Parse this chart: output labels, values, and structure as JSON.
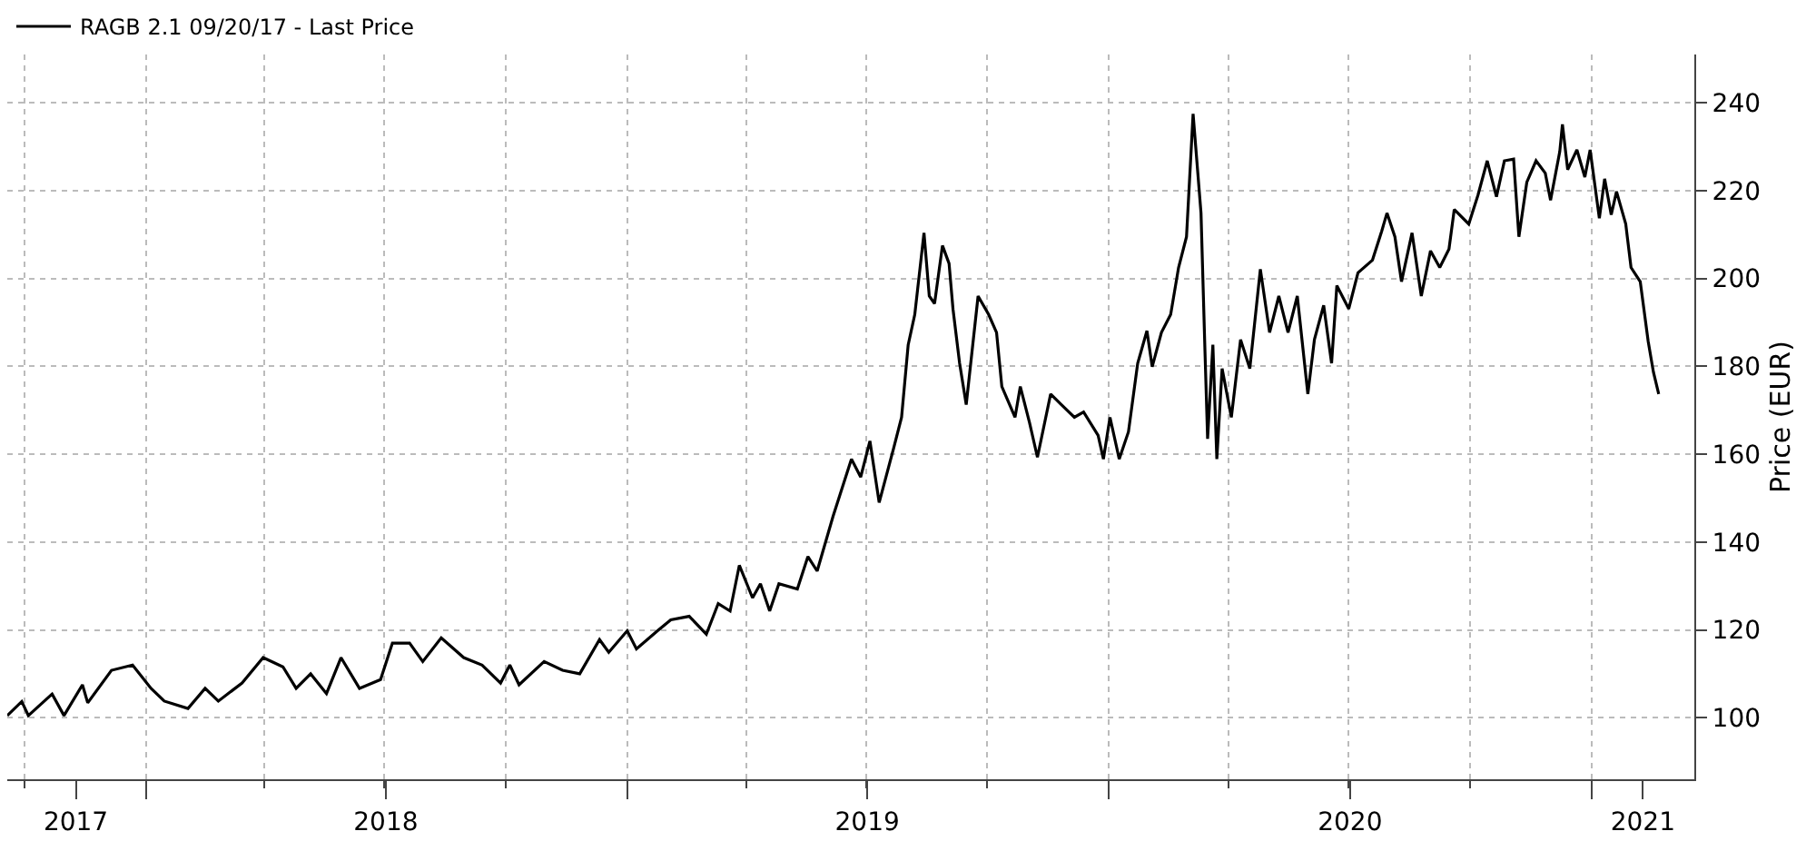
{
  "chart_data": {
    "type": "line",
    "ylabel": "Price (EUR)",
    "legend": "top left",
    "grid": true,
    "line_style": "solid",
    "xlim": [
      "2017-09-18",
      "2021-03-20"
    ],
    "xticks": [
      {
        "value": "2017-11-09",
        "label": "2017"
      },
      {
        "value": "2018-01-01",
        "label": null
      },
      {
        "value": "2018-07-02",
        "label": "2018"
      },
      {
        "value": "2019-01-01",
        "label": null
      },
      {
        "value": "2019-07-02",
        "label": "2019"
      },
      {
        "value": "2020-01-01",
        "label": null
      },
      {
        "value": "2020-07-02",
        "label": "2020"
      },
      {
        "value": "2021-01-01",
        "label": null
      },
      {
        "value": "2021-02-09",
        "label": "2021"
      }
    ],
    "ylim": [
      86,
      251
    ],
    "yticks": [
      100,
      120,
      140,
      160,
      180,
      200,
      220,
      240
    ],
    "series": [
      {
        "name": "RAGB 2.1 09/20/17 - Last Price",
        "color": "#000000",
        "x": [
          "2017-09-18",
          "2017-09-29",
          "2017-10-04",
          "2017-10-22",
          "2017-10-31",
          "2017-11-14",
          "2017-11-18",
          "2017-12-06",
          "2017-12-22",
          "2018-01-05",
          "2018-01-15",
          "2018-02-02",
          "2018-02-15",
          "2018-02-25",
          "2018-03-15",
          "2018-03-31",
          "2018-04-15",
          "2018-04-25",
          "2018-05-06",
          "2018-05-18",
          "2018-05-29",
          "2018-06-12",
          "2018-06-28",
          "2018-07-07",
          "2018-07-20",
          "2018-07-30",
          "2018-08-13",
          "2018-08-30",
          "2018-09-13",
          "2018-09-27",
          "2018-10-04",
          "2018-10-11",
          "2018-10-30",
          "2018-11-13",
          "2018-11-26",
          "2018-12-11",
          "2018-12-18",
          "2019-01-01",
          "2019-01-08",
          "2019-01-24",
          "2019-02-03",
          "2019-02-17",
          "2019-03-02",
          "2019-03-11",
          "2019-03-20",
          "2019-03-27",
          "2019-04-06",
          "2019-04-12",
          "2019-04-19",
          "2019-04-26",
          "2019-05-10",
          "2019-05-18",
          "2019-05-25",
          "2019-06-06",
          "2019-06-20",
          "2019-06-27",
          "2019-07-04",
          "2019-07-11",
          "2019-07-22",
          "2019-07-28",
          "2019-08-02",
          "2019-08-07",
          "2019-08-14",
          "2019-08-18",
          "2019-08-22",
          "2019-08-28",
          "2019-09-02",
          "2019-09-05",
          "2019-09-10",
          "2019-09-15",
          "2019-09-24",
          "2019-10-02",
          "2019-10-08",
          "2019-10-12",
          "2019-10-22",
          "2019-10-26",
          "2019-11-02",
          "2019-11-08",
          "2019-11-18",
          "2019-11-26",
          "2019-12-06",
          "2019-12-13",
          "2019-12-24",
          "2019-12-28",
          "2020-01-02",
          "2020-01-09",
          "2020-01-16",
          "2020-01-23",
          "2020-01-30",
          "2020-02-03",
          "2020-02-10",
          "2020-02-17",
          "2020-02-23",
          "2020-02-29",
          "2020-03-05",
          "2020-03-11",
          "2020-03-14",
          "2020-03-16",
          "2020-03-20",
          "2020-03-23",
          "2020-03-27",
          "2020-04-03",
          "2020-04-10",
          "2020-04-17",
          "2020-04-25",
          "2020-05-02",
          "2020-05-09",
          "2020-05-16",
          "2020-05-23",
          "2020-05-31",
          "2020-06-05",
          "2020-06-12",
          "2020-06-18",
          "2020-06-22",
          "2020-07-01",
          "2020-07-08",
          "2020-07-19",
          "2020-07-26",
          "2020-07-30",
          "2020-08-05",
          "2020-08-10",
          "2020-08-18",
          "2020-08-25",
          "2020-09-01",
          "2020-09-08",
          "2020-09-15",
          "2020-09-19",
          "2020-09-30",
          "2020-10-07",
          "2020-10-14",
          "2020-10-21",
          "2020-10-27",
          "2020-11-03",
          "2020-11-07",
          "2020-11-13",
          "2020-11-20",
          "2020-11-27",
          "2020-12-01",
          "2020-12-08",
          "2020-12-10",
          "2020-12-14",
          "2020-12-21",
          "2020-12-27",
          "2020-12-31",
          "2021-01-07",
          "2021-01-11",
          "2021-01-16",
          "2021-01-20",
          "2021-01-27",
          "2021-01-31",
          "2021-02-07",
          "2021-02-13",
          "2021-02-17",
          "2021-02-21"
        ],
        "values": [
          100.5,
          103.7,
          100.5,
          105.4,
          100.5,
          107.5,
          103.4,
          110.8,
          112,
          106.7,
          103.8,
          102.1,
          106.7,
          103.8,
          107.9,
          113.7,
          111.6,
          106.7,
          110,
          105.5,
          113.7,
          106.7,
          108.7,
          117,
          117,
          112.8,
          118.2,
          113.7,
          112,
          107.9,
          112,
          107.5,
          112.8,
          110.8,
          110,
          117.8,
          114.9,
          119.8,
          115.7,
          119.8,
          122.3,
          123.1,
          119,
          126,
          124.3,
          134.7,
          127.3,
          130.5,
          124.3,
          130.5,
          129.3,
          136.7,
          133.4,
          145.8,
          158.9,
          154.8,
          163,
          149,
          161.4,
          168.4,
          184.9,
          191.8,
          210.4,
          196,
          194.3,
          207.5,
          203.4,
          193,
          180.7,
          171.3,
          196,
          191.8,
          187.7,
          175.4,
          168.4,
          175.4,
          167.2,
          159.3,
          173.7,
          171.3,
          168.4,
          169.6,
          164.3,
          158.9,
          168.4,
          158.9,
          165.1,
          180.7,
          188.1,
          179.9,
          187.7,
          191.8,
          202.5,
          209.5,
          237.5,
          214.9,
          183.6,
          163.5,
          184.9,
          158.9,
          179.5,
          168.4,
          186.1,
          179.5,
          202.1,
          187.7,
          196,
          187.7,
          196,
          173.7,
          186.1,
          193.9,
          180.7,
          198.4,
          193.1,
          201.3,
          204.2,
          210.8,
          214.9,
          209.5,
          199.3,
          210.4,
          196,
          206.3,
          202.5,
          206.7,
          215.7,
          212.4,
          219,
          226.8,
          218.6,
          226.8,
          227.2,
          209.5,
          221.9,
          226.8,
          224,
          217.8,
          228.9,
          235.1,
          224.8,
          229.3,
          223.1,
          229.3,
          213.7,
          222.7,
          214.5,
          219.8,
          212.4,
          202.5,
          199.3,
          185.7,
          178.7,
          173.7
        ]
      }
    ]
  }
}
